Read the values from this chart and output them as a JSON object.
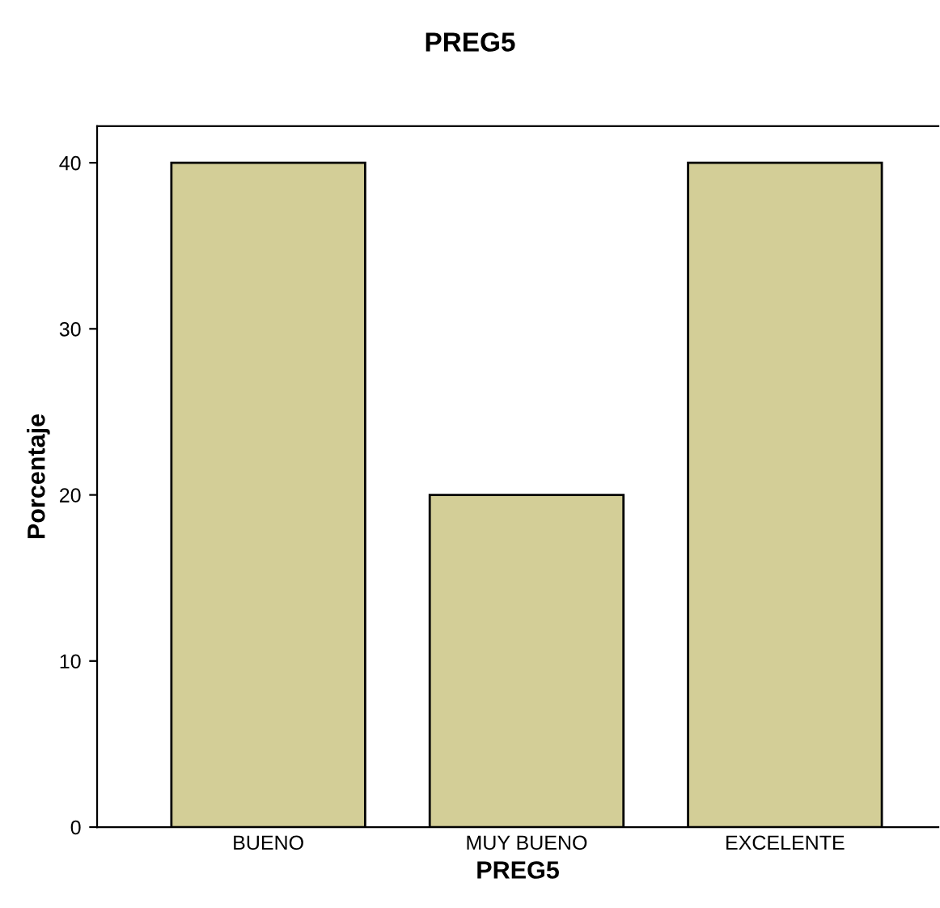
{
  "chart_data": {
    "type": "bar",
    "title": "PREG5",
    "xlabel": "PREG5",
    "ylabel": "Porcentaje",
    "categories": [
      "BUENO",
      "MUY BUENO",
      "EXCELENTE"
    ],
    "values": [
      40,
      20,
      40
    ],
    "color": "#d3ce97",
    "ylim": [
      0,
      42.2
    ],
    "yticks": [
      0,
      10,
      20,
      30,
      40
    ],
    "grid": false,
    "legend": false
  }
}
